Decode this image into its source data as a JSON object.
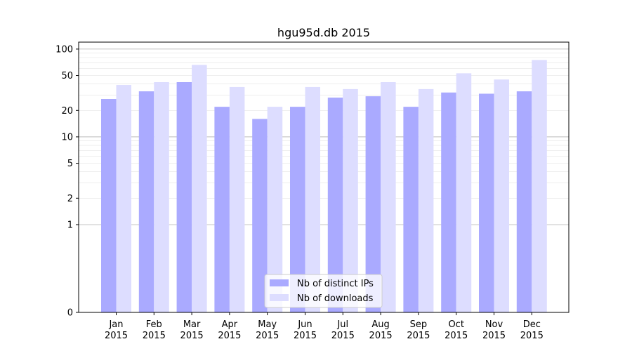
{
  "chart_data": {
    "type": "bar",
    "title": "hgu95d.db 2015",
    "xlabel": "",
    "ylabel": "",
    "y_scale": "symlog",
    "ylim": [
      0,
      120
    ],
    "y_ticks": [
      0,
      1,
      2,
      5,
      10,
      20,
      50,
      100
    ],
    "grid": "horizontal",
    "legend_position": "bottom-center",
    "categories": [
      [
        "Jan",
        "2015"
      ],
      [
        "Feb",
        "2015"
      ],
      [
        "Mar",
        "2015"
      ],
      [
        "Apr",
        "2015"
      ],
      [
        "May",
        "2015"
      ],
      [
        "Jun",
        "2015"
      ],
      [
        "Jul",
        "2015"
      ],
      [
        "Aug",
        "2015"
      ],
      [
        "Sep",
        "2015"
      ],
      [
        "Oct",
        "2015"
      ],
      [
        "Nov",
        "2015"
      ],
      [
        "Dec",
        "2015"
      ]
    ],
    "series": [
      {
        "name": "Nb of distinct IPs",
        "color": "#aaaaff",
        "values": [
          27,
          33,
          42,
          22,
          16,
          22,
          28,
          29,
          22,
          32,
          31,
          33
        ]
      },
      {
        "name": "Nb of downloads",
        "color": "#ddddff",
        "values": [
          39,
          42,
          66,
          37,
          22,
          37,
          35,
          42,
          35,
          53,
          45,
          75
        ]
      }
    ]
  }
}
